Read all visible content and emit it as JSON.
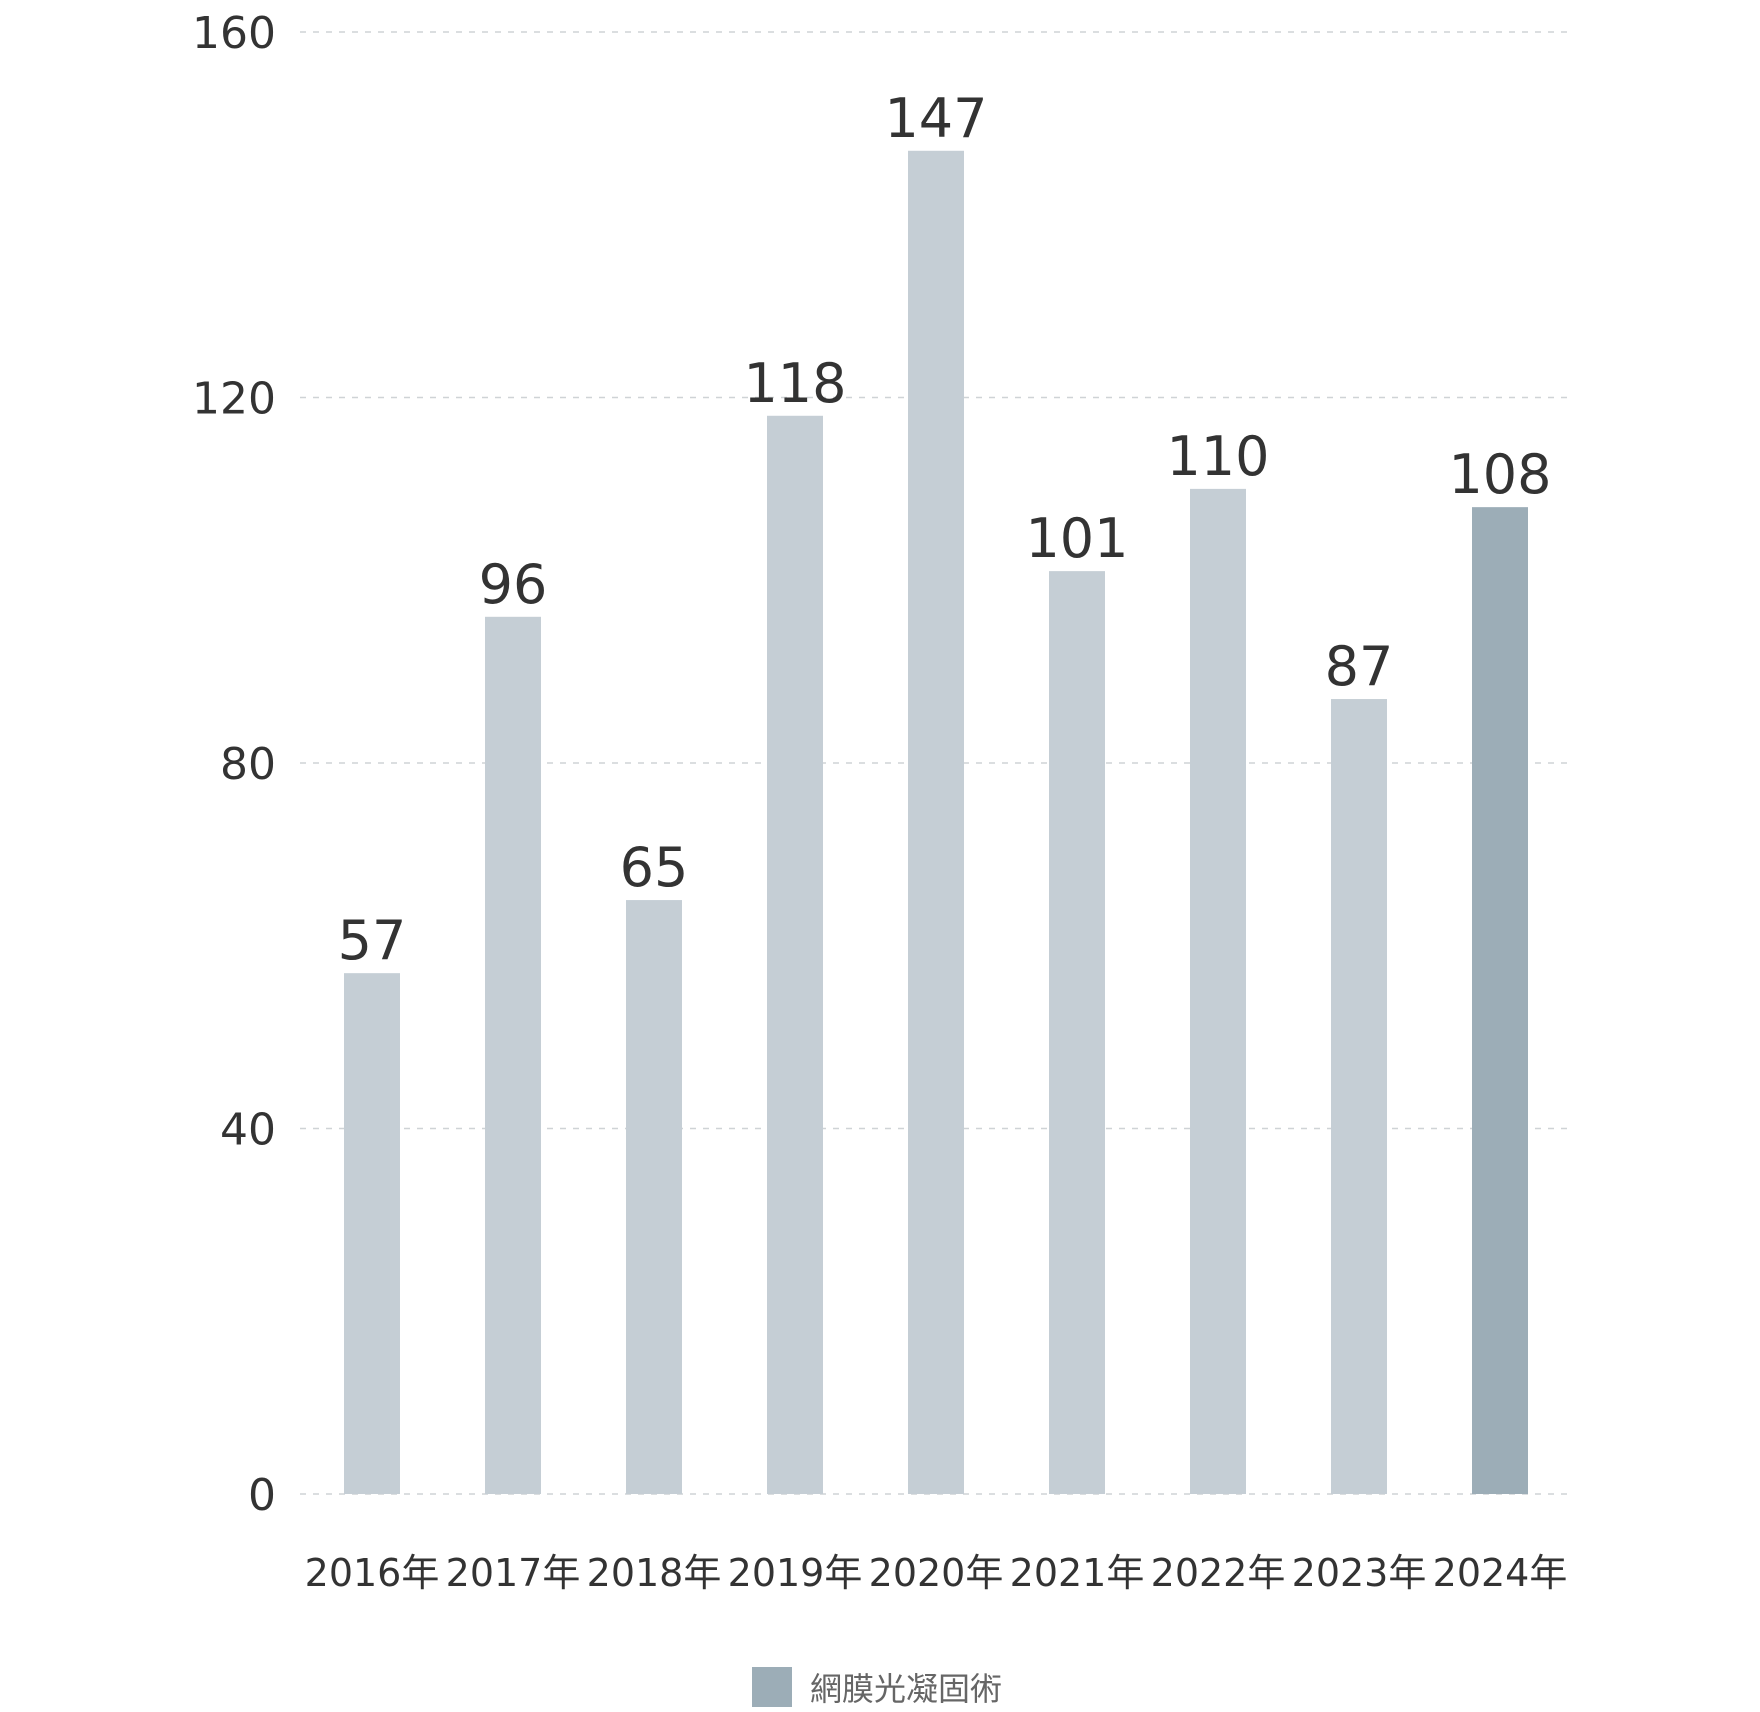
{
  "chart_data": {
    "type": "bar",
    "categories": [
      "2016年",
      "2017年",
      "2018年",
      "2019年",
      "2020年",
      "2021年",
      "2022年",
      "2023年",
      "2024年"
    ],
    "series": [
      {
        "name": "網膜光凝固術",
        "values": [
          57,
          96,
          65,
          118,
          147,
          101,
          110,
          87,
          108
        ]
      }
    ],
    "ylim": [
      0,
      160
    ],
    "yticks": [
      0,
      40,
      80,
      120,
      160
    ],
    "grid": true,
    "legend_position": "bottom-center",
    "colors": {
      "bar": "#c5ced5",
      "highlight": "#9cadb7",
      "text": "#333333"
    },
    "highlight_index": 8
  }
}
